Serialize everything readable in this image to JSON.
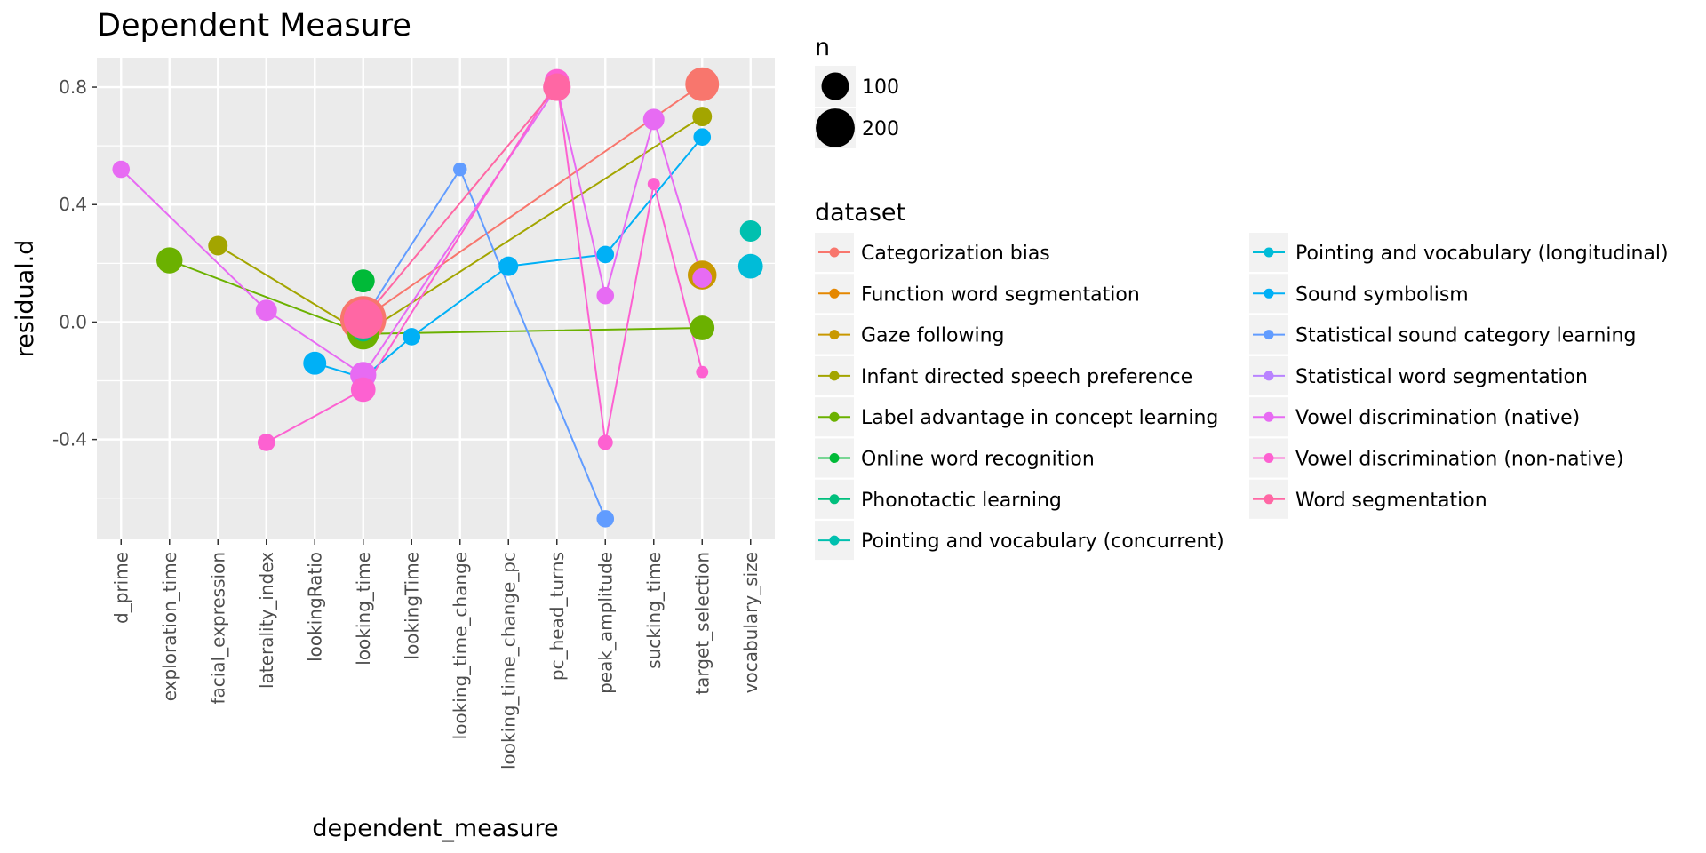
{
  "chart_data": {
    "type": "scatter",
    "title": "Dependent Measure",
    "xlabel": "dependent_measure",
    "ylabel": "residual.d",
    "ylim": [
      -0.74,
      0.9
    ],
    "yticks": [
      0.8,
      0.4,
      0.0,
      -0.4
    ],
    "ytick_labels": [
      "0.8",
      "0.4",
      "0.0",
      "-0.4"
    ],
    "grid": true,
    "categories": [
      "d_prime",
      "exploration_time",
      "facial_expression",
      "laterality_index",
      "lookingRatio",
      "looking_time",
      "lookingTime",
      "looking_time_change",
      "looking_time_change_pc",
      "pc_head_turns",
      "peak_amplitude",
      "sucking_time",
      "target_selection",
      "vocabulary_size"
    ],
    "size_legend": {
      "title": "n",
      "labels": [
        "100",
        "200"
      ],
      "values": [
        100,
        200
      ]
    },
    "color_legend": {
      "title": "dataset",
      "placement": "right"
    },
    "series": [
      {
        "name": "Categorization bias",
        "color": "#F8766D",
        "points": [
          {
            "x": "looking_time",
            "y": 0.01,
            "n": 280
          },
          {
            "x": "target_selection",
            "y": 0.81,
            "n": 150
          }
        ]
      },
      {
        "name": "Function word segmentation",
        "color": "#E58700",
        "points": [
          {
            "x": "looking_time",
            "y": 0.02,
            "n": 130
          }
        ]
      },
      {
        "name": "Gaze following",
        "color": "#C99800",
        "points": [
          {
            "x": "target_selection",
            "y": 0.16,
            "n": 110
          }
        ]
      },
      {
        "name": "Infant directed speech preference",
        "color": "#A3A500",
        "points": [
          {
            "x": "facial_expression",
            "y": 0.26,
            "n": 50
          },
          {
            "x": "looking_time",
            "y": -0.04,
            "n": 100
          },
          {
            "x": "target_selection",
            "y": 0.7,
            "n": 50
          }
        ]
      },
      {
        "name": "Label advantage in concept learning",
        "color": "#6BB100",
        "points": [
          {
            "x": "exploration_time",
            "y": 0.21,
            "n": 90
          },
          {
            "x": "looking_time",
            "y": -0.04,
            "n": 130
          },
          {
            "x": "target_selection",
            "y": -0.02,
            "n": 80
          }
        ]
      },
      {
        "name": "Online word recognition",
        "color": "#00BA38",
        "points": [
          {
            "x": "looking_time",
            "y": 0.14,
            "n": 70
          }
        ]
      },
      {
        "name": "Phonotactic learning",
        "color": "#00BF7D",
        "points": [
          {
            "x": "looking_time",
            "y": -0.03,
            "n": 60
          }
        ]
      },
      {
        "name": "Pointing and vocabulary (concurrent)",
        "color": "#00C0AF",
        "points": [
          {
            "x": "vocabulary_size",
            "y": 0.31,
            "n": 60
          }
        ]
      },
      {
        "name": "Pointing and vocabulary (longitudinal)",
        "color": "#00BCD8",
        "points": [
          {
            "x": "vocabulary_size",
            "y": 0.19,
            "n": 80
          }
        ]
      },
      {
        "name": "Sound symbolism",
        "color": "#00B0F6",
        "points": [
          {
            "x": "lookingRatio",
            "y": -0.14,
            "n": 70
          },
          {
            "x": "looking_time",
            "y": -0.19,
            "n": 40
          },
          {
            "x": "lookingTime",
            "y": -0.05,
            "n": 40
          },
          {
            "x": "looking_time_change_pc",
            "y": 0.19,
            "n": 50
          },
          {
            "x": "peak_amplitude",
            "y": 0.23,
            "n": 40
          },
          {
            "x": "target_selection",
            "y": 0.63,
            "n": 40
          }
        ]
      },
      {
        "name": "Statistical sound category learning",
        "color": "#619CFF",
        "points": [
          {
            "x": "looking_time",
            "y": 0.01,
            "n": 110
          },
          {
            "x": "looking_time_change",
            "y": 0.52,
            "n": 25
          },
          {
            "x": "peak_amplitude",
            "y": -0.67,
            "n": 40
          }
        ]
      },
      {
        "name": "Statistical word segmentation",
        "color": "#B983FF",
        "points": [
          {
            "x": "looking_time",
            "y": -0.18,
            "n": 60
          }
        ]
      },
      {
        "name": "Vowel discrimination (native)",
        "color": "#E76BF3",
        "points": [
          {
            "x": "d_prime",
            "y": 0.52,
            "n": 40
          },
          {
            "x": "laterality_index",
            "y": 0.04,
            "n": 60
          },
          {
            "x": "looking_time",
            "y": -0.18,
            "n": 90
          },
          {
            "x": "pc_head_turns",
            "y": 0.8,
            "n": 100
          },
          {
            "x": "peak_amplitude",
            "y": 0.09,
            "n": 40
          },
          {
            "x": "sucking_time",
            "y": 0.69,
            "n": 60
          },
          {
            "x": "target_selection",
            "y": 0.15,
            "n": 50
          }
        ]
      },
      {
        "name": "Vowel discrimination (non-native)",
        "color": "#FD61D1",
        "points": [
          {
            "x": "laterality_index",
            "y": -0.41,
            "n": 40
          },
          {
            "x": "looking_time",
            "y": -0.23,
            "n": 80
          },
          {
            "x": "pc_head_turns",
            "y": 0.82,
            "n": 80
          },
          {
            "x": "peak_amplitude",
            "y": -0.41,
            "n": 30
          },
          {
            "x": "sucking_time",
            "y": 0.47,
            "n": 20
          },
          {
            "x": "target_selection",
            "y": -0.17,
            "n": 20
          }
        ]
      },
      {
        "name": "Word segmentation",
        "color": "#FF67A4",
        "points": [
          {
            "x": "looking_time",
            "y": 0.01,
            "n": 200
          },
          {
            "x": "pc_head_turns",
            "y": 0.8,
            "n": 100
          }
        ]
      }
    ]
  }
}
